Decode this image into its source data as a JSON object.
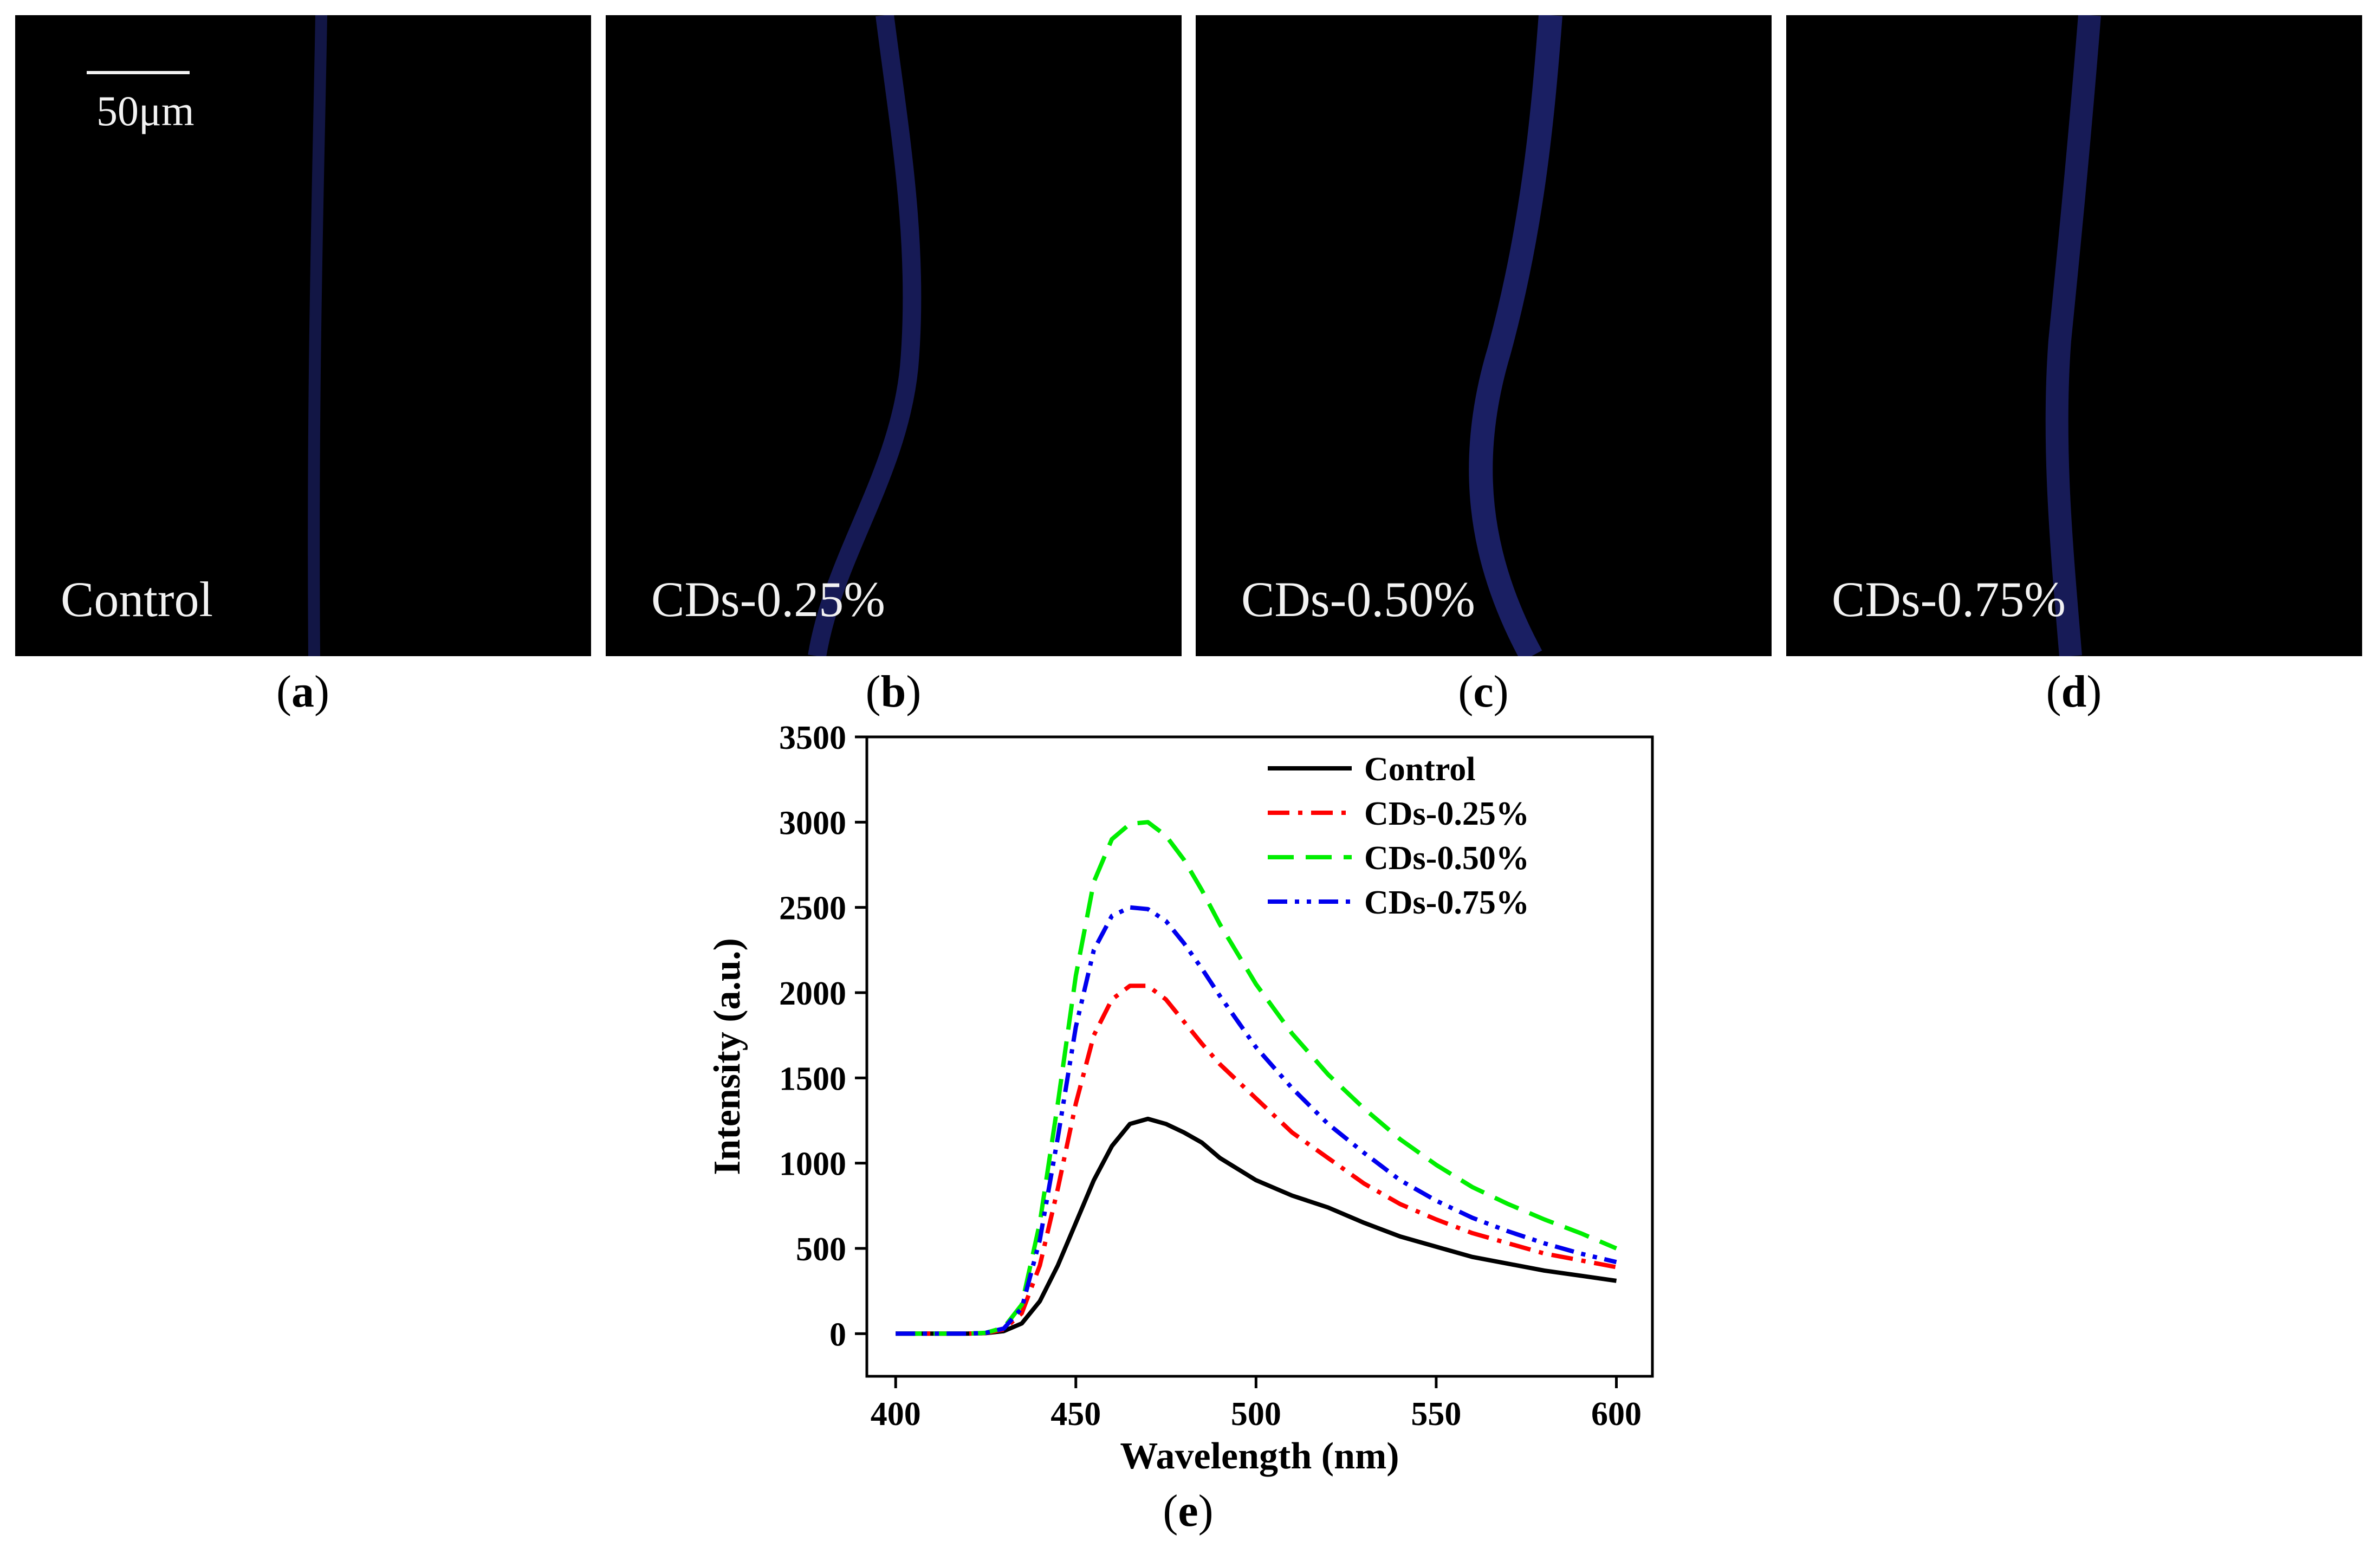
{
  "panels": [
    {
      "id": "a",
      "label": "Control",
      "caption_letter": "a"
    },
    {
      "id": "b",
      "label": "CDs-0.25%",
      "caption_letter": "b"
    },
    {
      "id": "c",
      "label": "CDs-0.50%",
      "caption_letter": "c"
    },
    {
      "id": "d",
      "label": "CDs-0.75%",
      "caption_letter": "d"
    }
  ],
  "scale_bar": {
    "label": "50μm"
  },
  "fiber_color": "#1a1f5e",
  "chart_caption_letter": "e",
  "chart_data": {
    "type": "line",
    "xlabel": "Wavelength (nm)",
    "ylabel": "Intensity (a.u.)",
    "xlim": [
      392,
      610
    ],
    "ylim": [
      -250,
      3500
    ],
    "xticks": [
      400,
      450,
      500,
      550,
      600
    ],
    "yticks": [
      0,
      500,
      1000,
      1500,
      2000,
      2500,
      3000,
      3500
    ],
    "grid": false,
    "legend_position": "top-right",
    "x": [
      400,
      410,
      420,
      425,
      430,
      435,
      440,
      445,
      450,
      455,
      460,
      465,
      470,
      475,
      480,
      485,
      490,
      500,
      510,
      520,
      530,
      540,
      550,
      560,
      570,
      580,
      590,
      600
    ],
    "series": [
      {
        "name": "Control",
        "color": "#000000",
        "dash": "solid",
        "values": [
          0,
          0,
          0,
          3,
          15,
          60,
          190,
          400,
          650,
          900,
          1100,
          1230,
          1260,
          1230,
          1180,
          1120,
          1030,
          900,
          810,
          740,
          650,
          570,
          510,
          450,
          410,
          370,
          340,
          310
        ]
      },
      {
        "name": "CDs-0.25%",
        "color": "#ff0000",
        "dash": "dashdot",
        "values": [
          0,
          0,
          0,
          4,
          25,
          120,
          400,
          850,
          1350,
          1750,
          1960,
          2040,
          2040,
          1960,
          1830,
          1700,
          1580,
          1380,
          1180,
          1030,
          880,
          760,
          670,
          590,
          530,
          470,
          430,
          390
        ]
      },
      {
        "name": "CDs-0.50%",
        "color": "#00ee00",
        "dash": "dash",
        "values": [
          0,
          0,
          0,
          5,
          35,
          170,
          650,
          1350,
          2100,
          2650,
          2900,
          2990,
          3000,
          2920,
          2780,
          2600,
          2400,
          2050,
          1760,
          1520,
          1320,
          1140,
          990,
          860,
          760,
          670,
          590,
          500
        ]
      },
      {
        "name": "CDs-0.75%",
        "color": "#0000ee",
        "dash": "dashdotdot",
        "values": [
          0,
          0,
          0,
          5,
          30,
          150,
          550,
          1150,
          1800,
          2250,
          2450,
          2500,
          2490,
          2420,
          2290,
          2140,
          1980,
          1680,
          1440,
          1230,
          1060,
          900,
          780,
          680,
          600,
          530,
          470,
          420
        ]
      }
    ]
  }
}
